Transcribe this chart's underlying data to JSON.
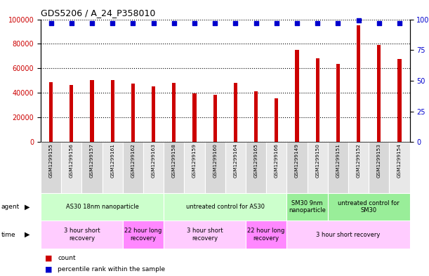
{
  "title": "GDS5206 / A_24_P358010",
  "samples": [
    "GSM1299155",
    "GSM1299156",
    "GSM1299157",
    "GSM1299161",
    "GSM1299162",
    "GSM1299163",
    "GSM1299158",
    "GSM1299159",
    "GSM1299160",
    "GSM1299164",
    "GSM1299165",
    "GSM1299166",
    "GSM1299149",
    "GSM1299150",
    "GSM1299151",
    "GSM1299152",
    "GSM1299153",
    "GSM1299154"
  ],
  "counts": [
    49000,
    46500,
    50500,
    50500,
    47500,
    45500,
    48000,
    39500,
    38500,
    48000,
    41500,
    35500,
    75000,
    68500,
    63500,
    95000,
    79000,
    67500
  ],
  "percentile_ranks": [
    97,
    97,
    97,
    97,
    97,
    97,
    97,
    97,
    97,
    97,
    97,
    97,
    97,
    97,
    97,
    99,
    97,
    97
  ],
  "bar_color": "#cc0000",
  "dot_color": "#0000cc",
  "ylim_left": [
    0,
    100000
  ],
  "ylim_right": [
    0,
    100
  ],
  "yticks_left": [
    0,
    20000,
    40000,
    60000,
    80000,
    100000
  ],
  "yticks_right": [
    0,
    25,
    50,
    75,
    100
  ],
  "agent_groups": [
    {
      "label": "AS30 18nm nanoparticle",
      "start": 0,
      "end": 6,
      "color": "#ccffcc"
    },
    {
      "label": "untreated control for AS30",
      "start": 6,
      "end": 12,
      "color": "#ccffcc"
    },
    {
      "label": "SM30 9nm\nnanoparticle",
      "start": 12,
      "end": 14,
      "color": "#99ee99"
    },
    {
      "label": "untreated control for\nSM30",
      "start": 14,
      "end": 18,
      "color": "#99ee99"
    }
  ],
  "time_groups": [
    {
      "label": "3 hour short\nrecovery",
      "start": 0,
      "end": 4,
      "color": "#ffccff"
    },
    {
      "label": "22 hour long\nrecovery",
      "start": 4,
      "end": 6,
      "color": "#ff88ff"
    },
    {
      "label": "3 hour short\nrecovery",
      "start": 6,
      "end": 10,
      "color": "#ffccff"
    },
    {
      "label": "22 hour long\nrecovery",
      "start": 10,
      "end": 12,
      "color": "#ff88ff"
    },
    {
      "label": "3 hour short recovery",
      "start": 12,
      "end": 18,
      "color": "#ffccff"
    }
  ],
  "legend_count_color": "#cc0000",
  "legend_pct_color": "#0000cc",
  "background_color": "#ffffff"
}
